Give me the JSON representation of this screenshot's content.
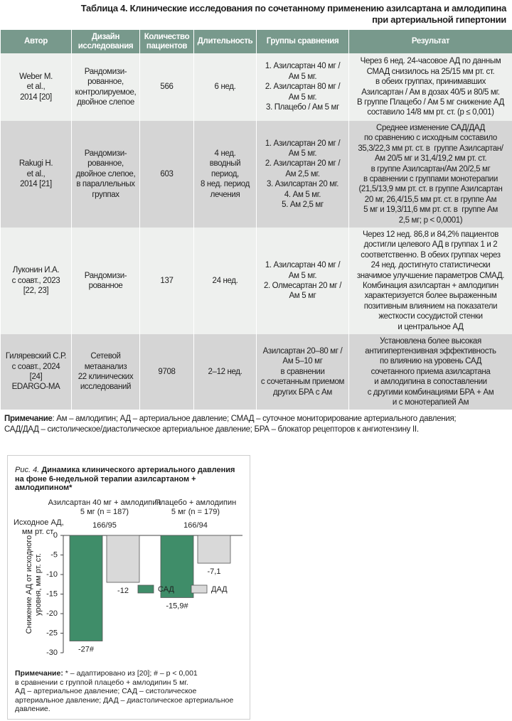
{
  "title": "Таблица 4. Клинические исследования по сочетанному применению азилсартана и амлодипина\nпри артериальной гипертонии",
  "table": {
    "headers": [
      "Автор",
      "Дизайн\nисследования",
      "Количество\nпациентов",
      "Длительность",
      "Группы сравнения",
      "Результат"
    ],
    "rows": [
      [
        "Weber M.\net al.,\n2014 [20]",
        "Рандомизи-\nрованное,\nконтролируемое,\nдвойное слепое",
        "566",
        "6 нед.",
        "1. Азилсартан 40 мг /\nАм 5 мг.\n2. Азилсартан 80 мг /\nАм 5 мг.\n3. Плацебо / Ам 5 мг",
        "Через 6 нед. 24-часовое АД по данным\nСМАД снизилось на 25/15 мм рт. ст.\nв обеих группах, принимавших\nАзилсартан / Ам в дозах 40/5 и 80/5 мг.\nВ группе Плацебо / Ам 5 мг снижение АД\nсоставило 14/8 мм рт. ст. (p ≤ 0,001)"
      ],
      [
        "Rakugi H.\net al.,\n2014 [21]",
        "Рандомизи-\nрованное,\nдвойное слепое,\nв параллельных\nгруппах",
        "603",
        "4 нед.\nвводный\nпериод,\n8 нед. период\nлечения",
        "1. Азилсартан 20 мг /\nАм 5 мг.\n2. Азилсартан 20 мг /\nАм 2,5 мг.\n3. Азилсартан 20 мг.\n4. Ам 5 мг.\n5. Ам 2,5 мг",
        "Среднее изменение САД/ДАД\nпо сравнению с исходным составило\n35,3/22,3 мм рт. ст. в  группе Азилсартан/\nАм 20/5 мг и 31,4/19,2 мм рт. ст.\nв группе Азилсартан/Ам 20/2,5 мг\nв сравнении с группами монотерапии\n(21,5/13,9 мм рт. ст. в группе Азилсартан\n20 мг, 26,4/15,5 мм рт. ст. в группе Ам\n5 мг и 19,3/11,6 мм рт. ст. в  группе Ам\n2,5 мг; p < 0,0001)"
      ],
      [
        "Луконин И.А.\nс соавт., 2023\n[22, 23]",
        "Рандомизи-\nрованное",
        "137",
        "24 нед.",
        "1. Азилсартан 40 мг /\nАм 5 мг.\n2. Олмесартан 20 мг /\nАм 5 мг",
        "Через 12 нед. 86,8 и 84,2% пациентов\nдостигли целевого АД в группах 1 и 2\nсоответственно. В обеих группах через\n24 нед. достигнуто статистически\nзначимое улучшение параметров СМАД.\nКомбинация азилсартан + амлодипин\nхарактеризуется более выраженным\nпозитивным влиянием на показатели\nжесткости сосудистой стенки\nи центральное АД"
      ],
      [
        "Гиляревский С.Р.\nс соавт., 2024\n[24]\nEDARGO-MA",
        "Сетевой\nметаанализ\n22 клинических\nисследований",
        "9708",
        "2–12 нед.",
        "Азилсартан 20–80 мг /\nАм 5–10 мг\nв сравнении\nс сочетанным приемом\nдругих БРА с Ам",
        "Установлена более высокая\nантигипертензивная эффективность\nпо влиянию на уровень САД\nсочетанного приема азилсартана\nи амлодипина в сопоставлении\nс другими комбинациями БРА + Ам\nи с монотерапией Ам"
      ]
    ]
  },
  "table_note": {
    "label": "Примечание",
    "text": ": Ам – амлодипин; АД – артериальное давление; СМАД – суточное мониторирование артериального давления;\nСАД/ДАД – систолическое/диастолическое артериальное давление; БРА – блокатор рецепторов к ангиотензину II."
  },
  "figure": {
    "label": "Рис. 4.",
    "caption": "Динамика клинического артериального давления\nна фоне 6-недельной терапии азилсартаном +\nамлодипином*",
    "baseline_label": "Исходное АД,\nмм рт. ст.",
    "note_label": "Примечание:",
    "note": " * – адаптировано из [20]; # – p < 0,001\nв сравнении с группой плацебо + амлодипин 5 мг.\nАД – артериальное давление; САД – систолическое\nартериальное давление; ДАД – диастолическое артериальное\nдавление."
  },
  "chart_data": {
    "type": "bar",
    "categories": [
      "Азилсартан 40 мг + амлодипин\n5 мг (n = 187)",
      "Плацебо + амлодипин\n5 мг (n = 179)"
    ],
    "annotations": [
      "166/95",
      "166/94"
    ],
    "y_label": "Снижение АД от исходного\nуровня, мм рт. ст.",
    "ylim": [
      -30,
      0
    ],
    "yticks": [
      0,
      -5,
      -10,
      -15,
      -20,
      -25,
      -30
    ],
    "series": [
      {
        "name": "САД",
        "color": "#3f8d69",
        "values": [
          -27,
          -15.9
        ],
        "value_labels": [
          "-27#",
          "-15,9#"
        ]
      },
      {
        "name": "ДАД",
        "color": "#d9d9d9",
        "values": [
          -12,
          -7.1
        ],
        "value_labels": [
          "-12",
          "-7,1"
        ]
      }
    ]
  }
}
